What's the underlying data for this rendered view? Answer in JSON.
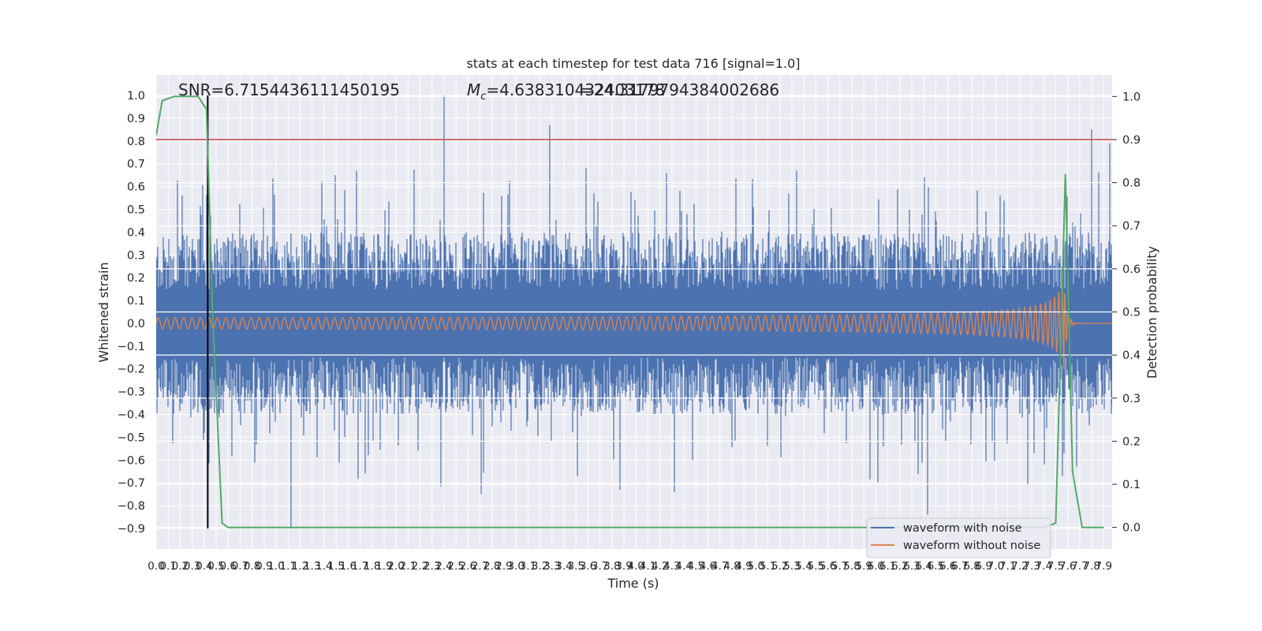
{
  "chart_data": {
    "type": "line",
    "title": "stats at each timestep for test data 716 [signal=1.0]",
    "xlabel": "Time (s)",
    "ylabel": "Whitened strain",
    "y2label": "Detection probability",
    "xlim": [
      0.0,
      7.97
    ],
    "ylim": [
      -0.99,
      1.09
    ],
    "y2lim": [
      -0.05,
      1.05
    ],
    "grid": true,
    "legend_position": "lower-right",
    "x_tick_labels": [
      "0.0",
      "0.1",
      "0.2",
      "0.3",
      "0.4",
      "0.5",
      "0.6",
      "0.7",
      "0.8",
      "0.9",
      "1.0",
      "1.1",
      "1.2",
      "1.3",
      "1.4",
      "1.5",
      "1.6",
      "1.7",
      "1.8",
      "1.9",
      "2.0",
      "2.1",
      "2.2",
      "2.3",
      "2.4",
      "2.5",
      "2.6",
      "2.7",
      "2.8",
      "2.9",
      "3.0",
      "3.1",
      "3.2",
      "3.3",
      "3.4",
      "3.5",
      "3.6",
      "3.7",
      "3.8",
      "3.9",
      "4.0",
      "4.1",
      "4.2",
      "4.3",
      "4.4",
      "4.5",
      "4.6",
      "4.7",
      "4.8",
      "4.9",
      "5.0",
      "5.1",
      "5.2",
      "5.3",
      "5.4",
      "5.5",
      "5.6",
      "5.7",
      "5.8",
      "5.9",
      "6.0",
      "6.1",
      "6.2",
      "6.3",
      "6.4",
      "6.5",
      "6.6",
      "6.7",
      "6.8",
      "6.9",
      "7.0",
      "7.1",
      "7.2",
      "7.3",
      "7.4",
      "7.5",
      "7.6",
      "7.7",
      "7.8",
      "7.9"
    ],
    "y_tick_labels": [
      "1.0",
      "0.9",
      "0.8",
      "0.7",
      "0.6",
      "0.5",
      "0.4",
      "0.3",
      "0.2",
      "0.1",
      "0.0",
      "−0.1",
      "−0.2",
      "−0.3",
      "−0.4",
      "−0.5",
      "−0.6",
      "−0.7",
      "−0.8",
      "−0.9"
    ],
    "y2_tick_labels": [
      "1.0",
      "0.9",
      "0.8",
      "0.7",
      "0.6",
      "0.5",
      "0.4",
      "0.3",
      "0.2",
      "0.1",
      "0.0"
    ],
    "annotations": {
      "snr": "SNR=6.7154436111450195",
      "mc_symbol": "M",
      "mc_sub": "c",
      "mc_value": "=4.638310432403178",
      "overlap_value": "=24.3179794384002686"
    },
    "threshold_probability": 0.9,
    "marker_time": 0.43,
    "merger_time": 7.57,
    "noise_envelope": {
      "typical_abs": 0.42,
      "max": 1.0,
      "min": -0.9
    },
    "colors": {
      "noise": "#4c72b0",
      "signal": "#dd8452",
      "probability": "#55a868",
      "threshold": "#c44e52",
      "marker": "#000000",
      "background": "#eaeaf2"
    },
    "series": [
      {
        "name": "waveform with noise",
        "role": "noise"
      },
      {
        "name": "waveform without noise",
        "role": "signal"
      },
      {
        "role": "probability",
        "x": [
          0.0,
          0.05,
          0.15,
          0.25,
          0.35,
          0.42,
          0.47,
          0.55,
          0.6,
          0.8,
          7.4,
          7.5,
          7.58,
          7.64,
          7.72,
          7.8,
          7.9
        ],
        "values": [
          0.91,
          0.99,
          1.0,
          1.0,
          1.0,
          0.97,
          0.5,
          0.01,
          0.0,
          0.0,
          0.0,
          0.01,
          0.82,
          0.13,
          0.0,
          0.0,
          0.0
        ]
      }
    ]
  },
  "legend": {
    "items": [
      {
        "label": "waveform with noise",
        "color": "#4c72b0"
      },
      {
        "label": "waveform without noise",
        "color": "#dd8452"
      }
    ]
  }
}
